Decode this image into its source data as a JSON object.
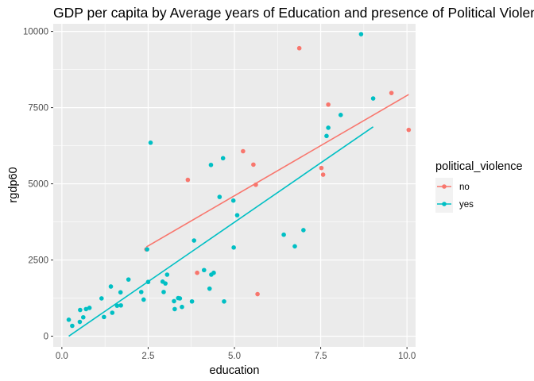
{
  "chart_data": {
    "type": "scatter",
    "title": "GDP per capita by Average years of Education and presence of Political Violence",
    "xlabel": "education",
    "ylabel": "rgdp60",
    "xlim": [
      -0.25,
      10.25
    ],
    "ylim": [
      -350,
      10250
    ],
    "xticks": [
      0.0,
      2.5,
      5.0,
      7.5,
      10.0
    ],
    "xtick_labels": [
      "0.0",
      "2.5",
      "5.0",
      "7.5",
      "10.0"
    ],
    "yticks": [
      0,
      2500,
      5000,
      7500,
      10000
    ],
    "ytick_labels": [
      "0",
      "2500",
      "5000",
      "7500",
      "10000"
    ],
    "grid": true,
    "background": "#ebebeb",
    "legend": {
      "title": "political_violence",
      "position": "right"
    },
    "series": [
      {
        "name": "no",
        "color": "#f8766d",
        "points": [
          [
            2.45,
            2850
          ],
          [
            3.65,
            5130
          ],
          [
            3.92,
            2080
          ],
          [
            5.25,
            6070
          ],
          [
            5.55,
            5630
          ],
          [
            5.62,
            4970
          ],
          [
            5.67,
            1380
          ],
          [
            6.88,
            9450
          ],
          [
            7.52,
            5520
          ],
          [
            7.57,
            5300
          ],
          [
            7.72,
            7600
          ],
          [
            9.55,
            7980
          ],
          [
            10.05,
            6770
          ]
        ],
        "fit": [
          [
            2.45,
            2930
          ],
          [
            10.05,
            7930
          ]
        ]
      },
      {
        "name": "yes",
        "color": "#00bfc4",
        "points": [
          [
            0.2,
            540
          ],
          [
            0.3,
            340
          ],
          [
            0.52,
            470
          ],
          [
            0.53,
            860
          ],
          [
            0.62,
            620
          ],
          [
            0.7,
            890
          ],
          [
            0.8,
            930
          ],
          [
            1.15,
            1240
          ],
          [
            1.22,
            630
          ],
          [
            1.42,
            1630
          ],
          [
            1.46,
            770
          ],
          [
            1.6,
            1000
          ],
          [
            1.7,
            1440
          ],
          [
            1.71,
            1010
          ],
          [
            1.93,
            1860
          ],
          [
            2.3,
            1450
          ],
          [
            2.37,
            1200
          ],
          [
            2.47,
            2850
          ],
          [
            2.5,
            1780
          ],
          [
            2.57,
            6350
          ],
          [
            2.92,
            1790
          ],
          [
            2.95,
            1450
          ],
          [
            3.0,
            1730
          ],
          [
            3.05,
            2020
          ],
          [
            3.25,
            1150
          ],
          [
            3.27,
            890
          ],
          [
            3.37,
            1250
          ],
          [
            3.42,
            1240
          ],
          [
            3.48,
            960
          ],
          [
            3.77,
            1140
          ],
          [
            3.83,
            3140
          ],
          [
            4.12,
            2170
          ],
          [
            4.28,
            1560
          ],
          [
            4.32,
            5620
          ],
          [
            4.33,
            2020
          ],
          [
            4.4,
            2080
          ],
          [
            4.57,
            4570
          ],
          [
            4.67,
            5840
          ],
          [
            4.7,
            1140
          ],
          [
            4.97,
            4450
          ],
          [
            4.98,
            2910
          ],
          [
            5.08,
            3970
          ],
          [
            6.43,
            3330
          ],
          [
            6.75,
            2950
          ],
          [
            7.0,
            3480
          ],
          [
            7.67,
            6570
          ],
          [
            7.72,
            6840
          ],
          [
            8.08,
            7260
          ],
          [
            8.67,
            9910
          ],
          [
            9.02,
            7800
          ]
        ],
        "fit": [
          [
            0.2,
            0
          ],
          [
            9.02,
            6870
          ]
        ]
      }
    ]
  }
}
